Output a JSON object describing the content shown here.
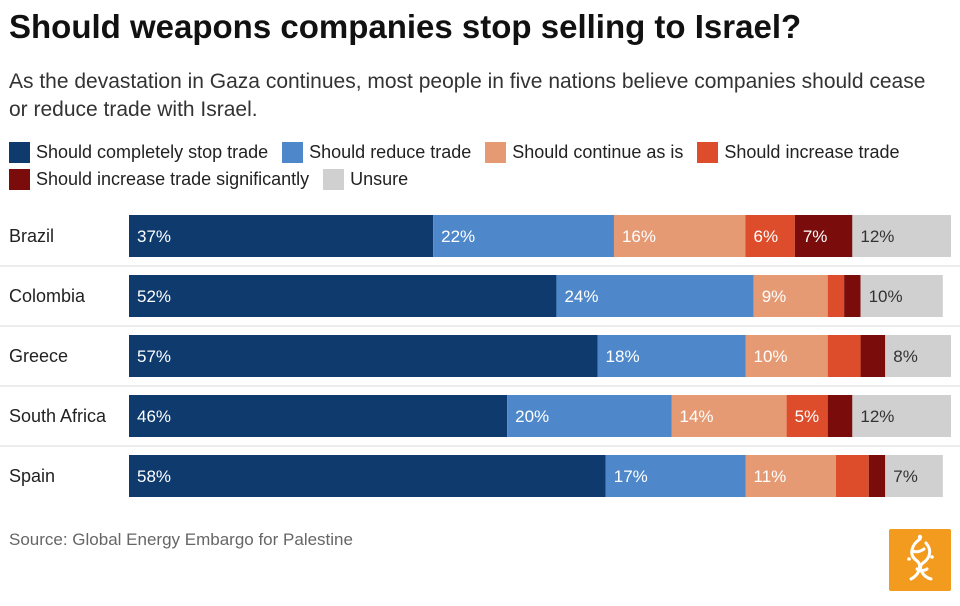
{
  "title": "Should weapons companies stop selling to Israel?",
  "subtitle": "As the devastation in Gaza continues, most people in five nations believe companies should cease or reduce trade with Israel.",
  "source": "Source: Global Energy Embargo for Palestine",
  "logo_icon": "al-jazeera-logo-icon",
  "logo_color": "#f29b1e",
  "chart_data": {
    "type": "bar",
    "orientation": "horizontal",
    "stacked": true,
    "unit": "%",
    "categories": [
      "Brazil",
      "Colombia",
      "Greece",
      "South Africa",
      "Spain"
    ],
    "series": [
      {
        "name": "Should completely stop trade",
        "color": "#0f3a6e",
        "text_color": "#ffffff",
        "values": [
          37,
          52,
          57,
          46,
          58
        ],
        "labels": [
          "37%",
          "52%",
          "57%",
          "46%",
          "58%"
        ]
      },
      {
        "name": "Should reduce trade",
        "color": "#4e88cb",
        "text_color": "#ffffff",
        "values": [
          22,
          24,
          18,
          20,
          17
        ],
        "labels": [
          "22%",
          "24%",
          "18%",
          "20%",
          "17%"
        ]
      },
      {
        "name": "Should continue as is",
        "color": "#e59a74",
        "text_color": "#ffffff",
        "values": [
          16,
          9,
          10,
          14,
          11
        ],
        "labels": [
          "16%",
          "9%",
          "10%",
          "14%",
          "11%"
        ]
      },
      {
        "name": "Should increase trade",
        "color": "#dd4d2b",
        "text_color": "#ffffff",
        "values": [
          6,
          2,
          4,
          5,
          4
        ],
        "labels": [
          "6%",
          "",
          "",
          "5%",
          ""
        ]
      },
      {
        "name": "Should increase trade significantly",
        "color": "#7a0c0c",
        "text_color": "#ffffff",
        "values": [
          7,
          2,
          3,
          3,
          2
        ],
        "labels": [
          "7%",
          "",
          "",
          "",
          ""
        ]
      },
      {
        "name": "Unsure",
        "color": "#d0d0d0",
        "text_color": "#333333",
        "values": [
          12,
          10,
          8,
          12,
          7
        ],
        "labels": [
          "12%",
          "10%",
          "8%",
          "12%",
          "7%"
        ]
      }
    ],
    "xlim": [
      0,
      100
    ],
    "legend_position": "top",
    "grid": false
  }
}
